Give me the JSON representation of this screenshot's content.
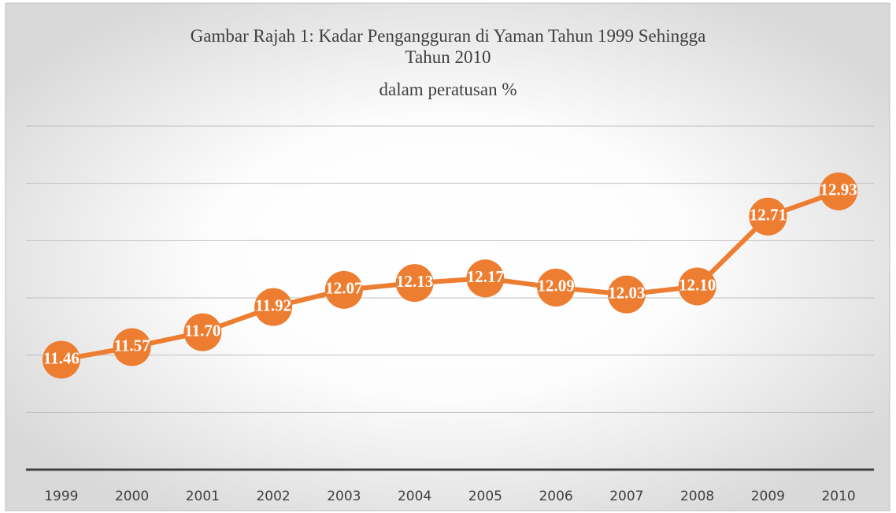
{
  "chart_data": {
    "type": "line",
    "title": "Gambar Rajah 1: Kadar Pengangguran di Yaman Tahun 1999 Sehingga Tahun 2010",
    "subtitle": "dalam peratusan %",
    "categories": [
      "1999",
      "2000",
      "2001",
      "2002",
      "2003",
      "2004",
      "2005",
      "2006",
      "2007",
      "2008",
      "2009",
      "2010"
    ],
    "series": [
      {
        "name": "Kadar Pengangguran",
        "color": "#ed7d31",
        "values": [
          11.46,
          11.57,
          11.7,
          11.92,
          12.07,
          12.13,
          12.17,
          12.09,
          12.03,
          12.1,
          12.71,
          12.93
        ],
        "value_labels": [
          "11.46",
          "11.57",
          "11.70",
          "11.92",
          "12.07",
          "12.13",
          "12.17",
          "12.09",
          "12.03",
          "12.10",
          "12.71",
          "12.93"
        ]
      }
    ],
    "ylim": [
      10.5,
      13.5
    ],
    "yticks": [
      10.5,
      11,
      11.5,
      12,
      12.5,
      13,
      13.5
    ],
    "grid": true
  }
}
